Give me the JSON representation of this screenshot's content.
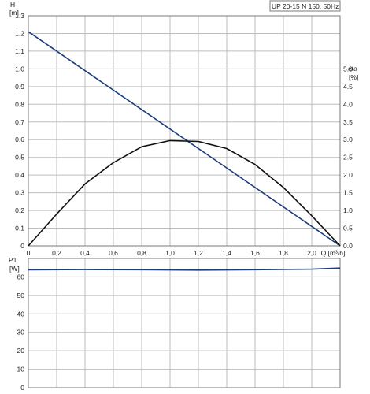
{
  "title": "UP 20-15 N 150, 50Hz",
  "colors": {
    "head_line": "#1f3d7a",
    "eta_curve": "#111111",
    "power_line": "#1f3d7a",
    "grid": "#bdbdbd",
    "frame": "#7a7a7a"
  },
  "chart_data": [
    {
      "type": "line",
      "title": "UP 20-15 N 150, 50Hz",
      "xlabel": "Q [m³/h]",
      "ylabel": "H\n[m]",
      "y2label": "eta\n[%]",
      "xlim": [
        0,
        2.2
      ],
      "ylim": [
        0,
        1.3
      ],
      "y2lim": [
        0,
        6.5
      ],
      "xticks": [
        0,
        0.2,
        0.4,
        0.6,
        0.8,
        1.0,
        1.2,
        1.4,
        1.6,
        1.8,
        2.0
      ],
      "xtick_labels": [
        "0",
        "0,2",
        "0,4",
        "0,6",
        "0,8",
        "1,0",
        "1,2",
        "1,4",
        "1,6",
        "1,8",
        "2,0"
      ],
      "yticks": [
        0,
        0.1,
        0.2,
        0.3,
        0.4,
        0.5,
        0.6,
        0.7,
        0.8,
        0.9,
        1.0,
        1.1,
        1.2,
        1.3
      ],
      "ytick_labels": [
        "0",
        "0.1",
        "0.2",
        "0.3",
        "0.4",
        "0.5",
        "0.6",
        "0.7",
        "0.8",
        "0.9",
        "1.0",
        "1.1",
        "1.2",
        "1.3"
      ],
      "y2ticks": [
        0,
        0.5,
        1.0,
        1.5,
        2.0,
        2.5,
        3.0,
        3.5,
        4.0,
        4.5,
        5.0
      ],
      "y2tick_labels": [
        "0.0",
        "0.5",
        "1.0",
        "1.5",
        "2.0",
        "2.5",
        "3.0",
        "3.5",
        "4.0",
        "4.5",
        "5.0"
      ],
      "grid": true,
      "series": [
        {
          "id": "head",
          "axis": "y",
          "color": "#1f3d7a",
          "x": [
            0,
            2.2
          ],
          "y": [
            1.21,
            0
          ]
        },
        {
          "id": "eta",
          "axis": "y",
          "color": "#111111",
          "x": [
            0,
            0.2,
            0.4,
            0.6,
            0.8,
            1.0,
            1.2,
            1.4,
            1.6,
            1.8,
            2.0,
            2.2
          ],
          "y": [
            0,
            0.18,
            0.35,
            0.47,
            0.56,
            0.595,
            0.59,
            0.55,
            0.46,
            0.33,
            0.17,
            0
          ]
        }
      ]
    },
    {
      "type": "line",
      "title": "",
      "xlabel": "",
      "ylabel": "P1\n[W]",
      "xlim": [
        0,
        2.2
      ],
      "ylim": [
        0,
        70
      ],
      "xticks": [
        0,
        0.2,
        0.4,
        0.6,
        0.8,
        1.0,
        1.2,
        1.4,
        1.6,
        1.8,
        2.0
      ],
      "yticks": [
        0,
        10,
        20,
        30,
        40,
        50,
        60
      ],
      "ytick_labels": [
        "0",
        "10",
        "20",
        "30",
        "40",
        "50",
        "60"
      ],
      "grid": true,
      "series": [
        {
          "id": "power",
          "axis": "y",
          "color": "#1f3d7a",
          "x": [
            0,
            0.4,
            0.8,
            1.2,
            1.6,
            2.0,
            2.2
          ],
          "y": [
            63.8,
            64.0,
            63.9,
            63.7,
            63.9,
            64.2,
            64.8
          ]
        }
      ]
    }
  ]
}
